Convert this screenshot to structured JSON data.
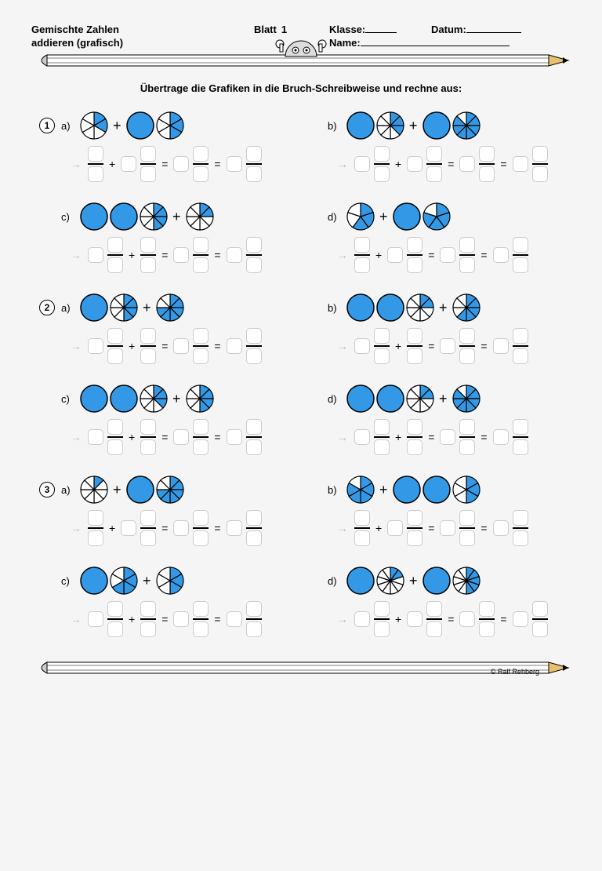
{
  "header": {
    "title_line1": "Gemischte Zahlen",
    "title_line2": "addieren (grafisch)",
    "blatt_label": "Blatt",
    "blatt_number": "1",
    "klasse_label": "Klasse:",
    "datum_label": "Datum:",
    "name_label": "Name:"
  },
  "instruction": "Übertrage die Grafiken in die Bruch-Schreibweise und rechne aus:",
  "style": {
    "fill_color": "#3399e6",
    "stroke_color": "#000000",
    "box_border": "#cccccc",
    "pie_radius": 17
  },
  "groups": [
    {
      "number": "1",
      "rows": [
        {
          "left": {
            "label": "a)",
            "terms": [
              [
                {
                  "slices": 6,
                  "filled": [
                    0,
                    1
                  ]
                }
              ],
              [
                {
                  "slices": 1,
                  "filled": [
                    0
                  ]
                },
                {
                  "slices": 6,
                  "filled": [
                    0,
                    1,
                    2
                  ]
                }
              ]
            ],
            "answer": [
              {
                "t": "frac"
              },
              {
                "t": "plus"
              },
              {
                "t": "whole"
              },
              {
                "t": "frac"
              },
              {
                "t": "eq"
              },
              {
                "t": "whole"
              },
              {
                "t": "frac"
              },
              {
                "t": "eq"
              },
              {
                "t": "whole"
              },
              {
                "t": "frac"
              }
            ]
          },
          "right": {
            "label": "b)",
            "terms": [
              [
                {
                  "slices": 1,
                  "filled": [
                    0
                  ]
                },
                {
                  "slices": 8,
                  "filled": [
                    0,
                    1,
                    2
                  ]
                }
              ],
              [
                {
                  "slices": 1,
                  "filled": [
                    0
                  ]
                },
                {
                  "slices": 8,
                  "filled": [
                    0,
                    1,
                    2,
                    3,
                    4,
                    5,
                    6
                  ]
                }
              ]
            ],
            "answer": [
              {
                "t": "whole"
              },
              {
                "t": "frac"
              },
              {
                "t": "plus"
              },
              {
                "t": "whole"
              },
              {
                "t": "frac"
              },
              {
                "t": "eq"
              },
              {
                "t": "whole"
              },
              {
                "t": "frac"
              },
              {
                "t": "eq"
              },
              {
                "t": "whole"
              },
              {
                "t": "frac"
              }
            ]
          }
        },
        {
          "left": {
            "label": "c)",
            "terms": [
              [
                {
                  "slices": 1,
                  "filled": [
                    0
                  ]
                },
                {
                  "slices": 1,
                  "filled": [
                    0
                  ]
                },
                {
                  "slices": 8,
                  "filled": [
                    0,
                    1,
                    2,
                    3
                  ]
                }
              ],
              [
                {
                  "slices": 8,
                  "filled": [
                    0,
                    1
                  ]
                }
              ]
            ],
            "answer": [
              {
                "t": "whole"
              },
              {
                "t": "frac"
              },
              {
                "t": "plus"
              },
              {
                "t": "frac"
              },
              {
                "t": "eq"
              },
              {
                "t": "whole"
              },
              {
                "t": "frac"
              },
              {
                "t": "eq"
              },
              {
                "t": "whole"
              },
              {
                "t": "frac"
              }
            ]
          },
          "right": {
            "label": "d)",
            "terms": [
              [
                {
                  "slices": 5,
                  "filled": [
                    0,
                    1,
                    2
                  ]
                }
              ],
              [
                {
                  "slices": 1,
                  "filled": [
                    0
                  ]
                },
                {
                  "slices": 5,
                  "filled": [
                    0,
                    1,
                    2,
                    3
                  ]
                }
              ]
            ],
            "answer": [
              {
                "t": "frac"
              },
              {
                "t": "plus"
              },
              {
                "t": "whole"
              },
              {
                "t": "frac"
              },
              {
                "t": "eq"
              },
              {
                "t": "whole"
              },
              {
                "t": "frac"
              },
              {
                "t": "eq"
              },
              {
                "t": "whole"
              },
              {
                "t": "frac"
              }
            ]
          }
        }
      ]
    },
    {
      "number": "2",
      "rows": [
        {
          "left": {
            "label": "a)",
            "terms": [
              [
                {
                  "slices": 1,
                  "filled": [
                    0
                  ]
                },
                {
                  "slices": 8,
                  "filled": [
                    0,
                    1,
                    2,
                    3
                  ]
                }
              ],
              [
                {
                  "slices": 8,
                  "filled": [
                    0,
                    1,
                    2,
                    3,
                    4,
                    5
                  ]
                }
              ]
            ],
            "answer": [
              {
                "t": "whole"
              },
              {
                "t": "frac"
              },
              {
                "t": "plus"
              },
              {
                "t": "frac"
              },
              {
                "t": "eq"
              },
              {
                "t": "whole"
              },
              {
                "t": "frac"
              },
              {
                "t": "eq"
              },
              {
                "t": "whole"
              },
              {
                "t": "frac"
              }
            ]
          },
          "right": {
            "label": "b)",
            "terms": [
              [
                {
                  "slices": 1,
                  "filled": [
                    0
                  ]
                },
                {
                  "slices": 1,
                  "filled": [
                    0
                  ]
                },
                {
                  "slices": 8,
                  "filled": [
                    0,
                    1
                  ]
                }
              ],
              [
                {
                  "slices": 8,
                  "filled": [
                    0,
                    1,
                    2,
                    3,
                    4
                  ]
                }
              ]
            ],
            "answer": [
              {
                "t": "whole"
              },
              {
                "t": "frac"
              },
              {
                "t": "plus"
              },
              {
                "t": "frac"
              },
              {
                "t": "eq"
              },
              {
                "t": "whole"
              },
              {
                "t": "frac"
              },
              {
                "t": "eq"
              },
              {
                "t": "whole"
              },
              {
                "t": "frac"
              }
            ]
          }
        },
        {
          "left": {
            "label": "c)",
            "terms": [
              [
                {
                  "slices": 1,
                  "filled": [
                    0
                  ]
                },
                {
                  "slices": 1,
                  "filled": [
                    0
                  ]
                },
                {
                  "slices": 8,
                  "filled": [
                    0,
                    1,
                    2
                  ]
                }
              ],
              [
                {
                  "slices": 8,
                  "filled": [
                    0,
                    1,
                    2,
                    3
                  ]
                }
              ]
            ],
            "answer": [
              {
                "t": "whole"
              },
              {
                "t": "frac"
              },
              {
                "t": "plus"
              },
              {
                "t": "frac"
              },
              {
                "t": "eq"
              },
              {
                "t": "whole"
              },
              {
                "t": "frac"
              },
              {
                "t": "eq"
              },
              {
                "t": "whole"
              },
              {
                "t": "frac"
              }
            ]
          },
          "right": {
            "label": "d)",
            "terms": [
              [
                {
                  "slices": 1,
                  "filled": [
                    0
                  ]
                },
                {
                  "slices": 1,
                  "filled": [
                    0
                  ]
                },
                {
                  "slices": 8,
                  "filled": [
                    0,
                    1
                  ]
                }
              ],
              [
                {
                  "slices": 8,
                  "filled": [
                    0,
                    1,
                    2,
                    3,
                    4,
                    5,
                    6
                  ]
                }
              ]
            ],
            "answer": [
              {
                "t": "whole"
              },
              {
                "t": "frac"
              },
              {
                "t": "plus"
              },
              {
                "t": "frac"
              },
              {
                "t": "eq"
              },
              {
                "t": "whole"
              },
              {
                "t": "frac"
              },
              {
                "t": "eq"
              },
              {
                "t": "whole"
              },
              {
                "t": "frac"
              }
            ]
          }
        }
      ]
    },
    {
      "number": "3",
      "rows": [
        {
          "left": {
            "label": "a)",
            "terms": [
              [
                {
                  "slices": 8,
                  "filled": [
                    0
                  ]
                }
              ],
              [
                {
                  "slices": 1,
                  "filled": [
                    0
                  ]
                },
                {
                  "slices": 8,
                  "filled": [
                    0,
                    1,
                    2,
                    3,
                    4,
                    5
                  ]
                }
              ]
            ],
            "answer": [
              {
                "t": "frac"
              },
              {
                "t": "plus"
              },
              {
                "t": "whole"
              },
              {
                "t": "frac"
              },
              {
                "t": "eq"
              },
              {
                "t": "whole"
              },
              {
                "t": "frac"
              },
              {
                "t": "eq"
              },
              {
                "t": "whole"
              },
              {
                "t": "frac"
              }
            ]
          },
          "right": {
            "label": "b)",
            "terms": [
              [
                {
                  "slices": 6,
                  "filled": [
                    0,
                    1,
                    2,
                    3,
                    4
                  ]
                }
              ],
              [
                {
                  "slices": 1,
                  "filled": [
                    0
                  ]
                },
                {
                  "slices": 1,
                  "filled": [
                    0
                  ]
                },
                {
                  "slices": 6,
                  "filled": [
                    0,
                    1,
                    2
                  ]
                }
              ]
            ],
            "answer": [
              {
                "t": "frac"
              },
              {
                "t": "plus"
              },
              {
                "t": "whole"
              },
              {
                "t": "frac"
              },
              {
                "t": "eq"
              },
              {
                "t": "whole"
              },
              {
                "t": "frac"
              },
              {
                "t": "eq"
              },
              {
                "t": "whole"
              },
              {
                "t": "frac"
              }
            ]
          }
        },
        {
          "left": {
            "label": "c)",
            "terms": [
              [
                {
                  "slices": 1,
                  "filled": [
                    0
                  ]
                },
                {
                  "slices": 6,
                  "filled": [
                    0,
                    1,
                    2,
                    3
                  ]
                }
              ],
              [
                {
                  "slices": 6,
                  "filled": [
                    0,
                    1,
                    2
                  ]
                }
              ]
            ],
            "answer": [
              {
                "t": "whole"
              },
              {
                "t": "frac"
              },
              {
                "t": "plus"
              },
              {
                "t": "frac"
              },
              {
                "t": "eq"
              },
              {
                "t": "whole"
              },
              {
                "t": "frac"
              },
              {
                "t": "eq"
              },
              {
                "t": "whole"
              },
              {
                "t": "frac"
              }
            ]
          },
          "right": {
            "label": "d)",
            "terms": [
              [
                {
                  "slices": 1,
                  "filled": [
                    0
                  ]
                },
                {
                  "slices": 10,
                  "filled": [
                    0,
                    1
                  ]
                }
              ],
              [
                {
                  "slices": 1,
                  "filled": [
                    0
                  ]
                },
                {
                  "slices": 10,
                  "filled": [
                    0,
                    1,
                    2,
                    3,
                    4
                  ]
                }
              ]
            ],
            "answer": [
              {
                "t": "whole"
              },
              {
                "t": "frac"
              },
              {
                "t": "plus"
              },
              {
                "t": "whole"
              },
              {
                "t": "frac"
              },
              {
                "t": "eq"
              },
              {
                "t": "whole"
              },
              {
                "t": "frac"
              },
              {
                "t": "eq"
              },
              {
                "t": "whole"
              },
              {
                "t": "frac"
              }
            ]
          }
        }
      ]
    }
  ],
  "copyright": "© Ralf Rehberg"
}
